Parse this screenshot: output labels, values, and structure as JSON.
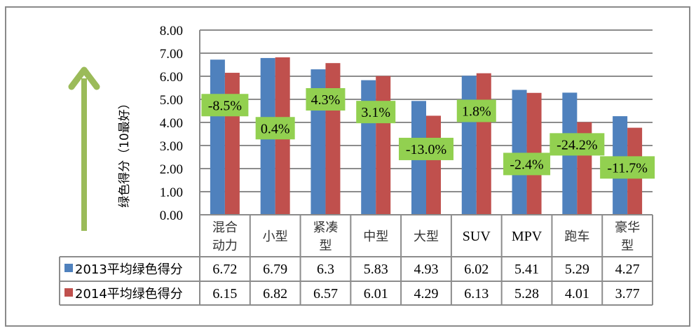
{
  "chart_data": {
    "type": "bar",
    "title": "",
    "xlabel": "",
    "ylabel": "绿色得分（10最好）",
    "ylim": [
      0,
      8
    ],
    "yticks": [
      "0.00",
      "1.00",
      "2.00",
      "3.00",
      "4.00",
      "5.00",
      "6.00",
      "7.00",
      "8.00"
    ],
    "grid": true,
    "categories": [
      [
        "混合",
        "动力"
      ],
      [
        "小型"
      ],
      [
        "紧凑",
        "型"
      ],
      [
        "中型"
      ],
      [
        "大型"
      ],
      [
        "SUV"
      ],
      [
        "MPV"
      ],
      [
        "跑车"
      ],
      [
        "豪华",
        "型"
      ]
    ],
    "series": [
      {
        "name": "2013平均绿色得分",
        "color": "#4f81bd",
        "values": [
          6.72,
          6.79,
          6.3,
          5.83,
          4.93,
          6.02,
          5.41,
          5.29,
          4.27
        ],
        "labels": [
          "6.72",
          "6.79",
          "6.3",
          "5.83",
          "4.93",
          "6.02",
          "5.41",
          "5.29",
          "4.27"
        ]
      },
      {
        "name": "2014平均绿色得分",
        "color": "#c0504d",
        "values": [
          6.15,
          6.82,
          6.57,
          6.01,
          4.29,
          6.13,
          5.28,
          4.01,
          3.77
        ],
        "labels": [
          "6.15",
          "6.82",
          "6.57",
          "6.01",
          "4.29",
          "6.13",
          "5.28",
          "4.01",
          "3.77"
        ]
      }
    ],
    "annotations": {
      "color": "#92d050",
      "labels": [
        "-8.5%",
        "0.4%",
        "4.3%",
        "3.1%",
        "-13.0%",
        "1.8%",
        "-2.4%",
        "-24.2%",
        "-11.7%"
      ],
      "y_values": [
        4.75,
        3.75,
        5.0,
        4.45,
        2.85,
        4.5,
        2.2,
        3.05,
        2.05
      ]
    },
    "legend": "data-table",
    "arrow_color": "#9bbb59"
  }
}
